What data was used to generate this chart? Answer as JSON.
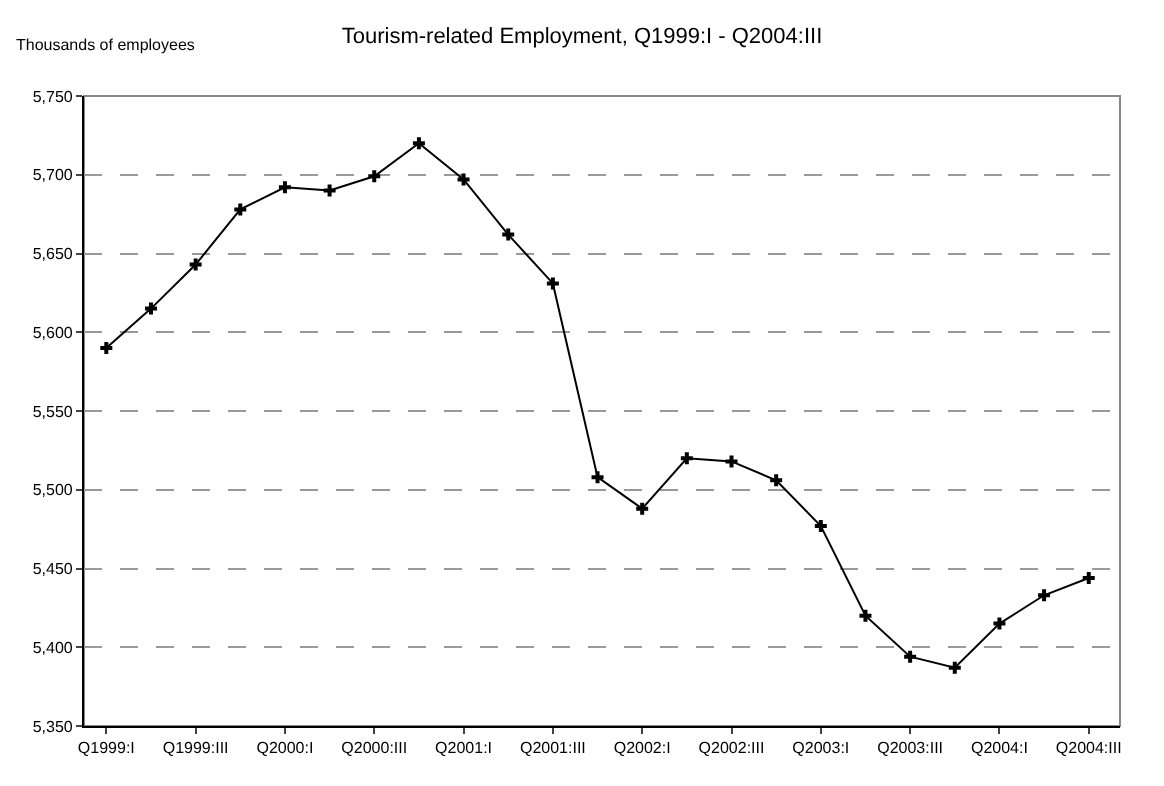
{
  "chart_data": {
    "type": "line",
    "title": "Tourism-related Employment, Q1999:I - Q2004:III",
    "ylabel": "Thousands of employees",
    "categories": [
      "Q1999:I",
      null,
      "Q1999:III",
      null,
      "Q2000:I",
      null,
      "Q2000:III",
      null,
      "Q2001:I",
      null,
      "Q2001:III",
      null,
      "Q2002:I",
      null,
      "Q2002:III",
      null,
      "Q2003:I",
      null,
      "Q2003:III",
      null,
      "Q2004:I",
      null,
      "Q2004:III"
    ],
    "series": [
      {
        "color": "#000000",
        "values": [
          5590,
          5615,
          5643,
          5678,
          5692,
          5690,
          5699,
          5720,
          5697,
          5662,
          5631,
          5508,
          5488,
          5520,
          5518,
          5506,
          5477,
          5420,
          5394,
          5387,
          5415,
          5433,
          5444
        ]
      }
    ],
    "ylim": [
      5350,
      5750
    ],
    "yticks": [
      {
        "value": 5350,
        "label": "5,350"
      },
      {
        "value": 5400,
        "label": "5,400"
      },
      {
        "value": 5450,
        "label": "5,450"
      },
      {
        "value": 5500,
        "label": "5,500"
      },
      {
        "value": 5550,
        "label": "5,550"
      },
      {
        "value": 5600,
        "label": "5,600"
      },
      {
        "value": 5650,
        "label": "5,650"
      },
      {
        "value": 5700,
        "label": "5,700"
      },
      {
        "value": 5750,
        "label": "5,750"
      }
    ],
    "grid": "y",
    "marker": "cross",
    "line_style": "solid"
  }
}
